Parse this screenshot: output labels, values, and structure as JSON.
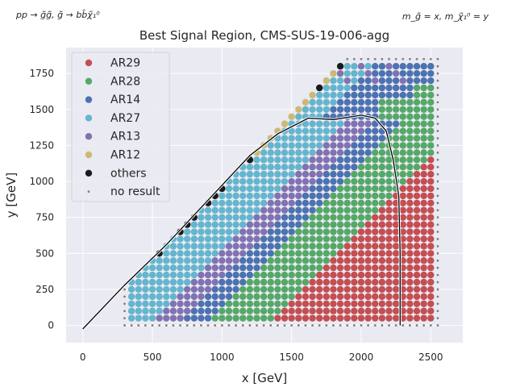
{
  "header": {
    "process_label": "pp → g̃g̃, g̃ → bb̄χ̃₁⁰",
    "mass_label": "m_g̃ = x, m_χ̃₁⁰ = y"
  },
  "chart_data": {
    "type": "scatter",
    "title": "Best Signal Region, CMS-SUS-19-006-agg",
    "xlabel": "x [GeV]",
    "ylabel": "y [GeV]",
    "xlim": [
      -120,
      2730
    ],
    "ylim": [
      -120,
      1930
    ],
    "xticks": [
      0,
      500,
      1000,
      1500,
      2000,
      2500
    ],
    "yticks": [
      0,
      250,
      500,
      750,
      1000,
      1250,
      1500,
      1750
    ],
    "grid": true,
    "legend_position": "top-left",
    "series": [
      {
        "name": "AR29",
        "color": "#c44e52",
        "region": "x > 1600 and y < 1600 and x - y >= 1325 (and x >= 1600 near the corner)"
      },
      {
        "name": "AR28",
        "color": "#55a868",
        "region": "band 850 < x - y <= 1325, upper band y > 1400 to the right"
      },
      {
        "name": "AR14",
        "color": "#4c72b0",
        "region": "band 650 < x - y <= 850 and upper right region"
      },
      {
        "name": "AR27",
        "color": "#64b5cd",
        "region": "near-diagonal band x - y <= 450"
      },
      {
        "name": "AR13",
        "color": "#8172b2",
        "region": "band 450 < x - y <= 650"
      },
      {
        "name": "AR12",
        "color": "#ccb974",
        "region": "edge points near the upper diagonal"
      },
      {
        "name": "others",
        "color": "#1a1a1a",
        "region": "isolated points along the diagonal"
      },
      {
        "name": "no result",
        "color": "#808080",
        "region": "outer border of the scanned grid"
      }
    ],
    "grid_scan": {
      "x_step": 50,
      "y_step": 50,
      "x_range": [
        300,
        2550
      ],
      "y_range": [
        0,
        1850
      ]
    },
    "exclusion_contour": [
      [
        0,
        -25
      ],
      [
        300,
        280
      ],
      [
        600,
        560
      ],
      [
        900,
        870
      ],
      [
        1200,
        1180
      ],
      [
        1400,
        1330
      ],
      [
        1620,
        1440
      ],
      [
        1800,
        1430
      ],
      [
        2000,
        1460
      ],
      [
        2100,
        1440
      ],
      [
        2180,
        1350
      ],
      [
        2230,
        1150
      ],
      [
        2270,
        900
      ],
      [
        2280,
        500
      ],
      [
        2280,
        0
      ]
    ]
  }
}
